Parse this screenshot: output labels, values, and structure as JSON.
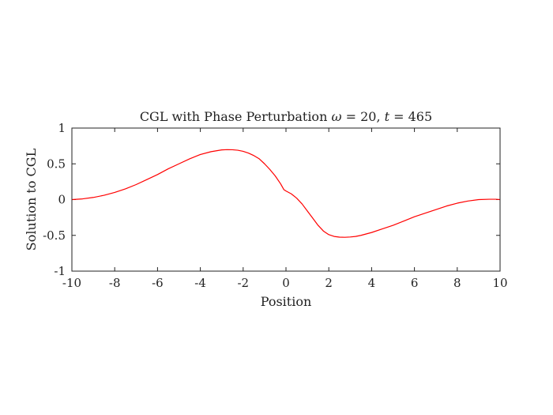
{
  "chart_data": {
    "type": "line",
    "title_parts": {
      "prefix": "CGL with Phase Perturbation ",
      "omega_symbol": "ω",
      "omega_eq": " = 20, ",
      "t_symbol": "t",
      "t_eq": " = 465"
    },
    "xlabel": "Position",
    "ylabel": "Solution to CGL",
    "xlim": [
      -10,
      10
    ],
    "ylim": [
      -1,
      1
    ],
    "xticks": [
      -10,
      -8,
      -6,
      -4,
      -2,
      0,
      2,
      4,
      6,
      8,
      10
    ],
    "xtick_labels": [
      "-10",
      "-8",
      "-6",
      "-4",
      "-2",
      "0",
      "2",
      "4",
      "6",
      "8",
      "10"
    ],
    "yticks": [
      -1,
      -0.5,
      0,
      0.5,
      1
    ],
    "ytick_labels": [
      "-1",
      "-0.5",
      "0",
      "0.5",
      "1"
    ],
    "grid": false,
    "series": [
      {
        "color": "#ff0000",
        "x": [
          -10,
          -9.5,
          -9,
          -8.5,
          -8,
          -7.5,
          -7,
          -6.5,
          -6,
          -5.5,
          -5,
          -4.5,
          -4,
          -3.5,
          -3,
          -2.75,
          -2.5,
          -2.25,
          -2,
          -1.75,
          -1.5,
          -1.25,
          -1,
          -0.75,
          -0.5,
          -0.25,
          -0.1,
          0,
          0.25,
          0.5,
          0.75,
          1,
          1.25,
          1.5,
          1.75,
          2,
          2.25,
          2.5,
          2.75,
          3,
          3.25,
          3.5,
          4,
          4.5,
          5,
          5.5,
          6,
          6.5,
          7,
          7.5,
          8,
          8.5,
          9,
          9.5,
          9.8,
          10
        ],
        "y": [
          0.0,
          0.01,
          0.03,
          0.06,
          0.1,
          0.15,
          0.21,
          0.28,
          0.35,
          0.43,
          0.5,
          0.57,
          0.63,
          0.67,
          0.695,
          0.698,
          0.697,
          0.69,
          0.675,
          0.65,
          0.615,
          0.57,
          0.5,
          0.42,
          0.33,
          0.22,
          0.14,
          0.12,
          0.08,
          0.02,
          -0.06,
          -0.16,
          -0.26,
          -0.36,
          -0.44,
          -0.49,
          -0.515,
          -0.525,
          -0.527,
          -0.523,
          -0.515,
          -0.5,
          -0.46,
          -0.41,
          -0.36,
          -0.3,
          -0.24,
          -0.19,
          -0.14,
          -0.09,
          -0.05,
          -0.02,
          0.0,
          0.005,
          0.005,
          0.0
        ]
      }
    ]
  }
}
